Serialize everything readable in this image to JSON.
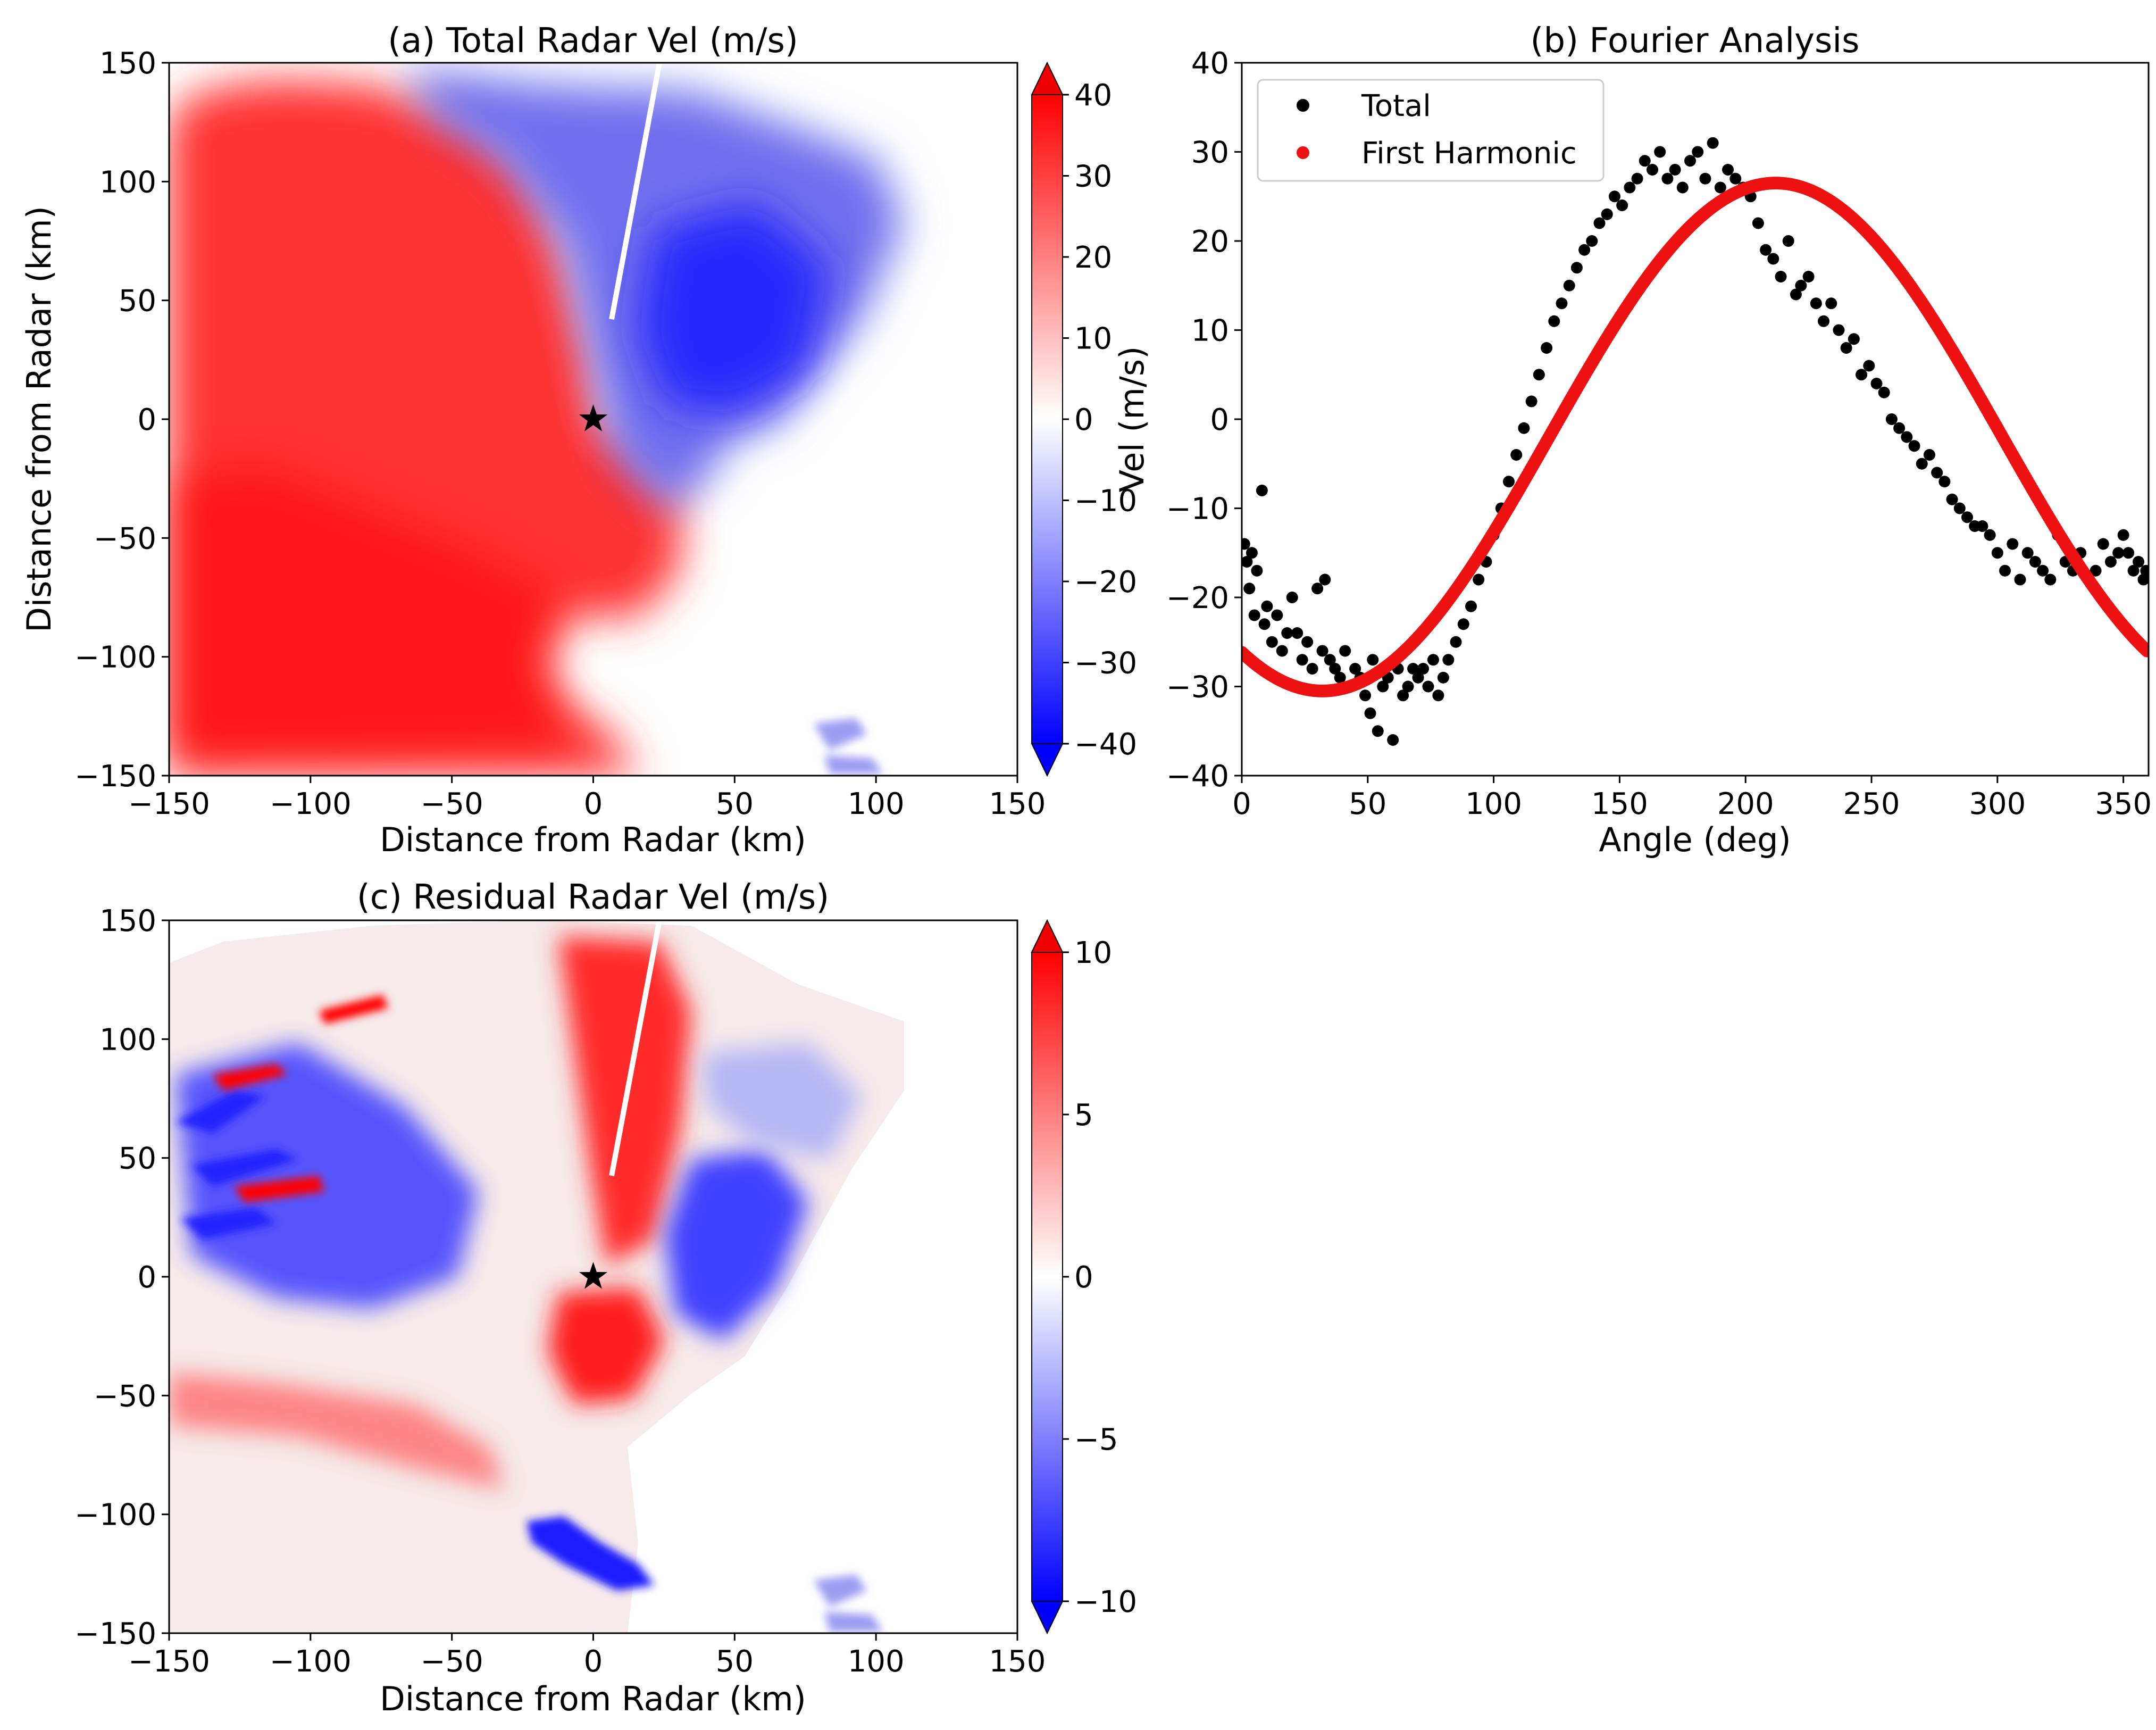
{
  "chart_data": [
    {
      "panel": "a",
      "type": "heatmap",
      "title": "(a) Total Radar Vel (m/s)",
      "xlabel": "Distance from Radar (km)",
      "ylabel": "Distance from Radar (km)",
      "xlim": [
        -150,
        150
      ],
      "ylim": [
        -150,
        150
      ],
      "xticks": [
        -150,
        -100,
        -50,
        0,
        50,
        100,
        150
      ],
      "yticks": [
        -150,
        -100,
        -50,
        0,
        50,
        100,
        150
      ],
      "xtick_labels": [
        "−150",
        "−100",
        "−50",
        "0",
        "50",
        "100",
        "150"
      ],
      "ytick_labels": [
        "−150",
        "−100",
        "−50",
        "0",
        "50",
        "100",
        "150"
      ],
      "radar_marker": {
        "symbol": "star",
        "x": 0,
        "y": 0
      },
      "colorbar": {
        "label": "Vel (m/s)",
        "range": [
          -40,
          40
        ],
        "extend": "both",
        "colormap": "bwr",
        "ticks": [
          -40,
          -30,
          -20,
          -10,
          0,
          10,
          20,
          30,
          40
        ],
        "tick_labels": [
          "−40",
          "−30",
          "−20",
          "−10",
          "0",
          "10",
          "20",
          "30",
          "40"
        ]
      },
      "field_regions": [
        {
          "region": "west and south-west of radar",
          "value_range": [
            20,
            40
          ]
        },
        {
          "region": "north and north-east of radar",
          "value_range": [
            -40,
            -10
          ]
        },
        {
          "region": "east / south-east beyond coverage",
          "value": null
        }
      ]
    },
    {
      "panel": "b",
      "type": "scatter",
      "title": "(b) Fourier Analysis",
      "xlabel": "Angle (deg)",
      "ylabel": "",
      "xlim": [
        0,
        360
      ],
      "ylim": [
        -40,
        40
      ],
      "xticks": [
        0,
        50,
        100,
        150,
        200,
        250,
        300,
        350
      ],
      "yticks": [
        -40,
        -30,
        -20,
        -10,
        0,
        10,
        20,
        30,
        40
      ],
      "xtick_labels": [
        "0",
        "50",
        "100",
        "150",
        "200",
        "250",
        "300",
        "350"
      ],
      "ytick_labels": [
        "−40",
        "−30",
        "−20",
        "−10",
        "0",
        "10",
        "20",
        "30",
        "40"
      ],
      "legend_location": "upper-left",
      "first_harmonic_model": {
        "mean": -2,
        "amplitude": 28.5,
        "phase_deg": 212
      },
      "series": [
        {
          "name": "Total",
          "color": "#000000",
          "x": [
            1,
            2,
            3,
            4,
            5,
            6,
            8,
            9,
            10,
            12,
            14,
            16,
            18,
            20,
            22,
            24,
            26,
            28,
            30,
            32,
            33,
            35,
            37,
            39,
            41,
            43,
            45,
            47,
            49,
            51,
            52,
            54,
            56,
            58,
            60,
            62,
            64,
            66,
            68,
            70,
            72,
            74,
            76,
            78,
            80,
            82,
            85,
            88,
            91,
            94,
            97,
            100,
            103,
            106,
            109,
            112,
            115,
            118,
            121,
            124,
            127,
            130,
            133,
            136,
            139,
            142,
            145,
            148,
            151,
            154,
            157,
            160,
            163,
            166,
            169,
            172,
            175,
            178,
            181,
            184,
            187,
            190,
            193,
            196,
            199,
            202,
            205,
            208,
            211,
            214,
            217,
            220,
            222,
            225,
            228,
            231,
            234,
            237,
            240,
            243,
            246,
            249,
            252,
            255,
            258,
            261,
            264,
            267,
            270,
            273,
            276,
            279,
            282,
            285,
            288,
            291,
            294,
            297,
            300,
            303,
            306,
            309,
            312,
            315,
            318,
            321,
            324,
            327,
            330,
            333,
            336,
            339,
            342,
            345,
            348,
            350,
            352,
            354,
            356,
            358,
            359
          ],
          "y": [
            -14,
            -16,
            -19,
            -15,
            -22,
            -17,
            -8,
            -23,
            -21,
            -25,
            -22,
            -26,
            -24,
            -20,
            -24,
            -27,
            -25,
            -28,
            -19,
            -26,
            -18,
            -27,
            -28,
            -29,
            -26,
            -30,
            -28,
            -29,
            -31,
            -33,
            -27,
            -35,
            -30,
            -29,
            -36,
            -28,
            -31,
            -30,
            -28,
            -29,
            -28,
            -30,
            -27,
            -31,
            -29,
            -27,
            -25,
            -23,
            -21,
            -18,
            -16,
            -13,
            -10,
            -7,
            -4,
            -1,
            2,
            5,
            8,
            11,
            13,
            15,
            17,
            19,
            20,
            22,
            23,
            25,
            24,
            26,
            27,
            29,
            28,
            30,
            27,
            28,
            26,
            29,
            30,
            27,
            31,
            26,
            28,
            27,
            26,
            25,
            22,
            19,
            18,
            16,
            20,
            14,
            15,
            16,
            13,
            11,
            13,
            10,
            8,
            9,
            5,
            6,
            4,
            3,
            0,
            -1,
            -2,
            -3,
            -5,
            -4,
            -6,
            -7,
            -9,
            -10,
            -11,
            -12,
            -12,
            -13,
            -15,
            -17,
            -14,
            -18,
            -15,
            -16,
            -17,
            -18,
            -13,
            -16,
            -17,
            -15,
            -18,
            -17,
            -14,
            -16,
            -15,
            -13,
            -15,
            -17,
            -16,
            -18,
            -17
          ]
        },
        {
          "name": "First Harmonic",
          "color": "#ee1111",
          "note": "dense red points along fitted sinusoid"
        }
      ]
    },
    {
      "panel": "c",
      "type": "heatmap",
      "title": "(c) Residual Radar Vel (m/s)",
      "xlabel": "Distance from Radar (km)",
      "ylabel": "",
      "xlim": [
        -150,
        150
      ],
      "ylim": [
        -150,
        150
      ],
      "xticks": [
        -150,
        -100,
        -50,
        0,
        50,
        100,
        150
      ],
      "yticks": [
        -150,
        -100,
        -50,
        0,
        50,
        100,
        150
      ],
      "xtick_labels": [
        "−150",
        "−100",
        "−50",
        "0",
        "50",
        "100",
        "150"
      ],
      "ytick_labels": [
        "−150",
        "−100",
        "−50",
        "0",
        "50",
        "100",
        "150"
      ],
      "radar_marker": {
        "symbol": "star",
        "x": 0,
        "y": 0
      },
      "colorbar": {
        "label": "",
        "range": [
          -10,
          10
        ],
        "extend": "both",
        "colormap": "bwr",
        "ticks": [
          -10,
          -5,
          0,
          5,
          10
        ],
        "tick_labels": [
          "−10",
          "−5",
          "0",
          "5",
          "10"
        ]
      },
      "field_regions": [
        {
          "region": "north and south lobes around radar",
          "value_range": [
            3,
            10
          ]
        },
        {
          "region": "west streaks",
          "value_range": [
            -10,
            10
          ]
        },
        {
          "region": "east and south-east edge",
          "value_range": [
            -10,
            -3
          ]
        }
      ]
    }
  ]
}
